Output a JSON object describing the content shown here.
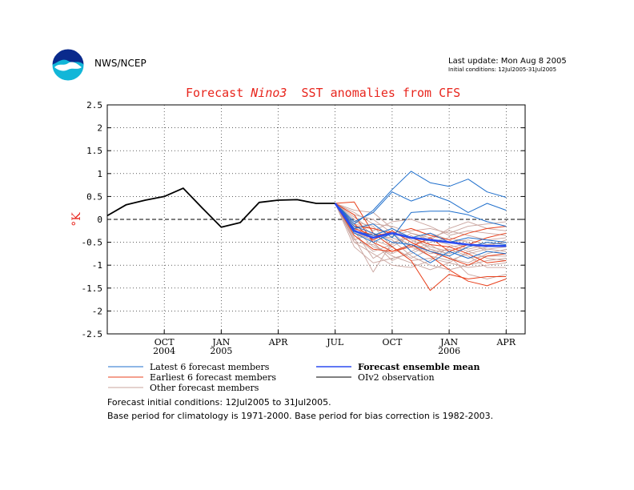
{
  "header": {
    "agency": "NWS/NCEP",
    "last_update": "Last update: Mon Aug 8 2005",
    "initial_conditions_range": "Initial conditions: 12Jul2005-31Jul2005"
  },
  "title": {
    "prefix": "Forecast ",
    "region": "Nino3",
    "suffix": "  SST anomalies from CFS"
  },
  "footnotes": {
    "line1": "Forecast initial conditions: 12Jul2005 to 31Jul2005.",
    "line2": "Base period for climatology is 1971-2000. Base period for bias correction is 1982-2003."
  },
  "colors": {
    "latest": "#1f6fcc",
    "earliest": "#e8401c",
    "other": "#c9a49e",
    "mean": "#2b4cf0",
    "obs": "#000000",
    "title": "#e8251d"
  },
  "chart_data": {
    "type": "line",
    "ylabel": "°K",
    "ylim": [
      -2.5,
      2.5
    ],
    "yticks": [
      -2.5,
      -2,
      -1.5,
      -1,
      -0.5,
      0,
      0.5,
      1,
      1.5,
      2,
      2.5
    ],
    "ytick_labels": [
      "-2.5",
      "-2",
      "-1.5",
      "-1",
      "-0.5",
      "0",
      "0.5",
      "1",
      "1.5",
      "2",
      "2.5"
    ],
    "x_start": "2004-07",
    "x_end": "2006-05",
    "xticks": [
      {
        "month": "2004-10",
        "label": "OCT",
        "year": "2004"
      },
      {
        "month": "2005-01",
        "label": "JAN",
        "year": "2005"
      },
      {
        "month": "2005-04",
        "label": "APR",
        "year": ""
      },
      {
        "month": "2005-07",
        "label": "JUL",
        "year": ""
      },
      {
        "month": "2005-10",
        "label": "OCT",
        "year": ""
      },
      {
        "month": "2006-01",
        "label": "JAN",
        "year": "2006"
      },
      {
        "month": "2006-04",
        "label": "APR",
        "year": ""
      }
    ],
    "grid": true,
    "legend": {
      "placement": "bottom",
      "entries": [
        {
          "key": "latest",
          "label": "Latest 6 forecast members",
          "bold": false
        },
        {
          "key": "mean",
          "label": "Forecast ensemble mean",
          "bold": true
        },
        {
          "key": "earliest",
          "label": "Earliest 6 forecast members",
          "bold": false
        },
        {
          "key": "obs",
          "label": "OIv2 observation",
          "bold": false
        },
        {
          "key": "other",
          "label": "Other forecast members",
          "bold": false
        }
      ]
    },
    "forecast_months": [
      "2005-07",
      "2005-08",
      "2005-09",
      "2005-10",
      "2005-11",
      "2005-12",
      "2006-01",
      "2006-02",
      "2006-03",
      "2006-04"
    ],
    "observation": {
      "months": [
        "2004-07",
        "2004-08",
        "2004-09",
        "2004-10",
        "2004-11",
        "2004-12",
        "2005-01",
        "2005-02",
        "2005-03",
        "2005-04",
        "2005-05",
        "2005-06",
        "2005-07"
      ],
      "values": [
        0.08,
        0.32,
        0.42,
        0.5,
        0.68,
        0.25,
        -0.17,
        -0.07,
        0.37,
        0.42,
        0.43,
        0.35,
        0.35
      ]
    },
    "ensemble_mean": [
      0.35,
      -0.25,
      -0.4,
      -0.3,
      -0.4,
      -0.45,
      -0.5,
      -0.55,
      -0.58,
      -0.58
    ],
    "latest_members": [
      [
        0.35,
        -0.1,
        0.2,
        0.65,
        1.05,
        0.8,
        0.72,
        0.88,
        0.6,
        0.48
      ],
      [
        0.35,
        -0.05,
        0.15,
        0.6,
        0.4,
        0.55,
        0.4,
        0.15,
        0.35,
        0.2
      ],
      [
        0.35,
        -0.2,
        -0.1,
        -0.4,
        0.15,
        0.18,
        0.18,
        0.1,
        -0.05,
        -0.15
      ],
      [
        0.35,
        -0.15,
        -0.3,
        -0.5,
        -0.55,
        -0.7,
        -0.8,
        -0.6,
        -0.5,
        -0.55
      ],
      [
        0.35,
        -0.3,
        -0.5,
        -0.3,
        -0.7,
        -0.95,
        -0.7,
        -0.85,
        -0.7,
        -0.75
      ],
      [
        0.35,
        -0.25,
        -0.35,
        -0.2,
        -0.4,
        -0.3,
        -0.5,
        -0.4,
        -0.45,
        -0.5
      ]
    ],
    "earliest_members": [
      [
        0.35,
        0.38,
        -0.3,
        -0.6,
        -0.9,
        -1.55,
        -1.2,
        -1.3,
        -1.25,
        -1.25
      ],
      [
        0.35,
        0.1,
        -0.5,
        -0.7,
        -0.55,
        -0.8,
        -1.1,
        -1.35,
        -1.45,
        -1.3
      ],
      [
        0.35,
        -0.2,
        -0.35,
        -0.3,
        -0.4,
        -0.55,
        -0.6,
        -0.75,
        -0.95,
        -0.9
      ],
      [
        0.35,
        -0.35,
        -0.65,
        -0.7,
        -0.6,
        -0.4,
        -0.7,
        -0.55,
        -0.4,
        -0.3
      ],
      [
        0.35,
        -0.15,
        -0.2,
        -0.3,
        -0.2,
        -0.35,
        -0.45,
        -0.3,
        -0.2,
        -0.15
      ],
      [
        0.35,
        -0.1,
        -0.45,
        -0.25,
        -0.5,
        -0.7,
        -0.85,
        -1.0,
        -0.8,
        -0.75
      ]
    ],
    "other_members": [
      [
        0.35,
        -0.6,
        -0.95,
        -0.85,
        -0.75,
        -0.55,
        -0.8,
        -1.2,
        -1.3,
        -1.2
      ],
      [
        0.35,
        -0.4,
        -1.15,
        -0.5,
        -0.4,
        -0.3,
        -0.5,
        -0.45,
        -0.55,
        -0.5
      ],
      [
        0.35,
        0.1,
        0.0,
        -0.3,
        -0.6,
        -0.8,
        -0.9,
        -0.75,
        -0.65,
        -0.7
      ],
      [
        0.35,
        0.2,
        0.15,
        -0.2,
        -0.45,
        -0.6,
        -0.7,
        -0.85,
        -0.8,
        -0.8
      ],
      [
        0.35,
        -0.3,
        -0.45,
        -0.6,
        -0.9,
        -0.85,
        -0.95,
        -1.05,
        -1.0,
        -0.95
      ],
      [
        0.35,
        -0.5,
        -0.75,
        -1.0,
        -1.05,
        -0.9,
        -0.6,
        -0.55,
        -0.65,
        -0.6
      ],
      [
        0.35,
        -0.1,
        -0.2,
        -0.35,
        -0.25,
        -0.2,
        -0.3,
        -0.15,
        -0.1,
        -0.05
      ],
      [
        0.35,
        0.05,
        -0.25,
        -0.05,
        0.0,
        -0.15,
        -0.35,
        -0.25,
        -0.3,
        -0.35
      ],
      [
        0.35,
        -0.2,
        -0.6,
        -0.75,
        -0.55,
        -0.45,
        -0.55,
        -0.7,
        -0.85,
        -0.9
      ],
      [
        0.35,
        -0.45,
        -0.3,
        -0.45,
        -0.8,
        -1.0,
        -1.1,
        -1.0,
        -0.9,
        -0.85
      ],
      [
        0.35,
        -0.25,
        -0.85,
        -0.6,
        -0.35,
        -0.65,
        -0.75,
        -0.6,
        -0.5,
        -0.55
      ],
      [
        0.35,
        -0.15,
        -0.5,
        -0.9,
        -0.7,
        -0.5,
        -0.4,
        -0.5,
        -0.7,
        -0.75
      ],
      [
        0.35,
        0.0,
        -0.35,
        -0.4,
        -0.55,
        -0.75,
        -0.65,
        -0.8,
        -1.05,
        -1.05
      ],
      [
        0.35,
        -0.35,
        -0.7,
        -0.55,
        -0.3,
        -0.4,
        -0.25,
        -0.35,
        -0.45,
        -0.4
      ],
      [
        0.35,
        -0.05,
        -0.15,
        -0.6,
        -0.85,
        -0.65,
        -0.85,
        -0.95,
        -0.75,
        -0.65
      ],
      [
        0.35,
        -0.5,
        -0.55,
        -0.8,
        -0.95,
        -1.1,
        -0.95,
        -0.7,
        -0.6,
        -0.45
      ],
      [
        0.35,
        0.15,
        -0.1,
        -0.15,
        -0.3,
        -0.45,
        -0.2,
        -0.05,
        -0.2,
        -0.25
      ],
      [
        0.35,
        -0.3,
        -0.4,
        -0.25,
        -0.5,
        -0.3,
        -0.45,
        -0.65,
        -0.55,
        -0.6
      ]
    ]
  }
}
